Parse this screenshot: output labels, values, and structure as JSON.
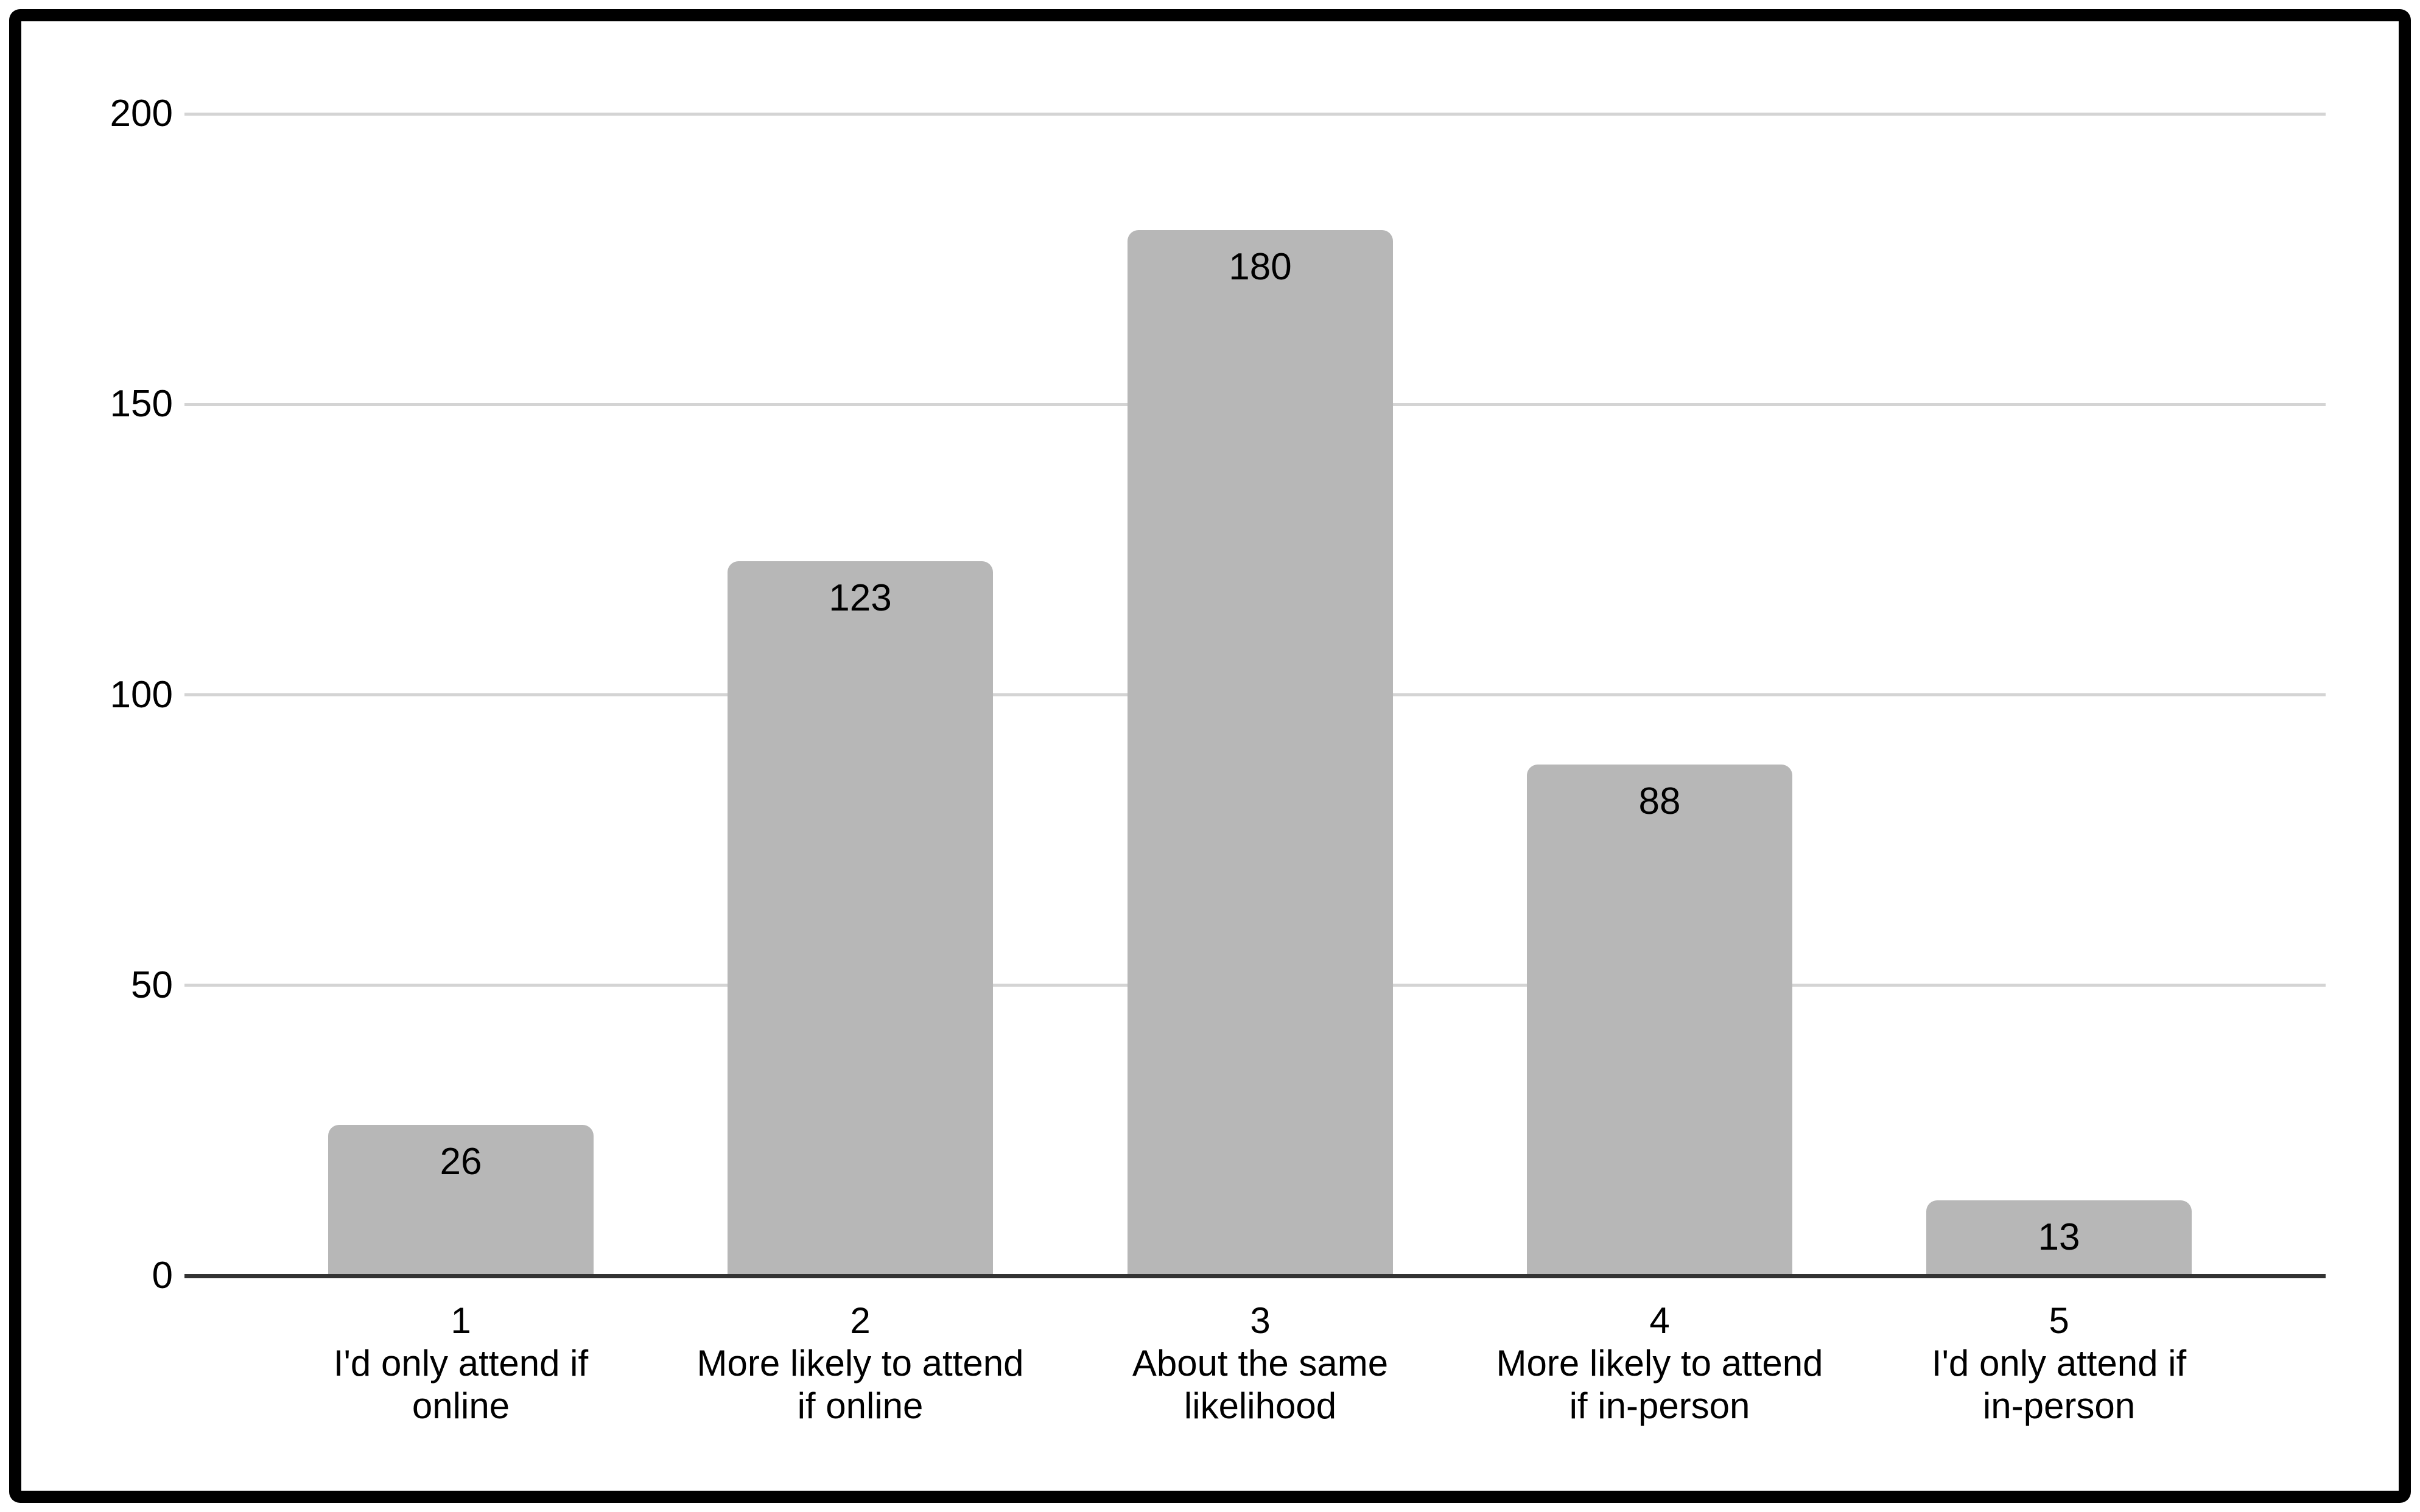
{
  "background": "#ffffff",
  "frame": {
    "color": "#000000"
  },
  "chart_data": {
    "type": "bar",
    "title": "",
    "xlabel": "",
    "ylabel": "",
    "categories": [
      {
        "tick": "1",
        "label": "I'd only attend if online",
        "label_lines": [
          "I'd only attend if",
          "online"
        ]
      },
      {
        "tick": "2",
        "label": "More likely to attend if online",
        "label_lines": [
          "More likely to attend",
          "if online"
        ]
      },
      {
        "tick": "3",
        "label": "About the same likelihood",
        "label_lines": [
          "About the same",
          "likelihood"
        ]
      },
      {
        "tick": "4",
        "label": "More likely to attend if in-person",
        "label_lines": [
          "More likely to attend",
          "if in-person"
        ]
      },
      {
        "tick": "5",
        "label": "I'd only attend if in-person",
        "label_lines": [
          "I'd only attend if",
          "in-person"
        ]
      }
    ],
    "values": [
      26,
      123,
      180,
      88,
      13
    ],
    "data_labels": [
      "26",
      "123",
      "180",
      "88",
      "13"
    ],
    "ylim": [
      0,
      200
    ],
    "yticks": [
      0,
      50,
      100,
      150,
      200
    ],
    "ytick_labels": [
      "0",
      "50",
      "100",
      "150",
      "200"
    ],
    "grid": true,
    "legend_position": "none",
    "colors": {
      "bar": "#b7b7b7",
      "gridline": "#d4d4d4",
      "axis_line": "#333333",
      "text": "#000000",
      "background": "#ffffff"
    }
  }
}
